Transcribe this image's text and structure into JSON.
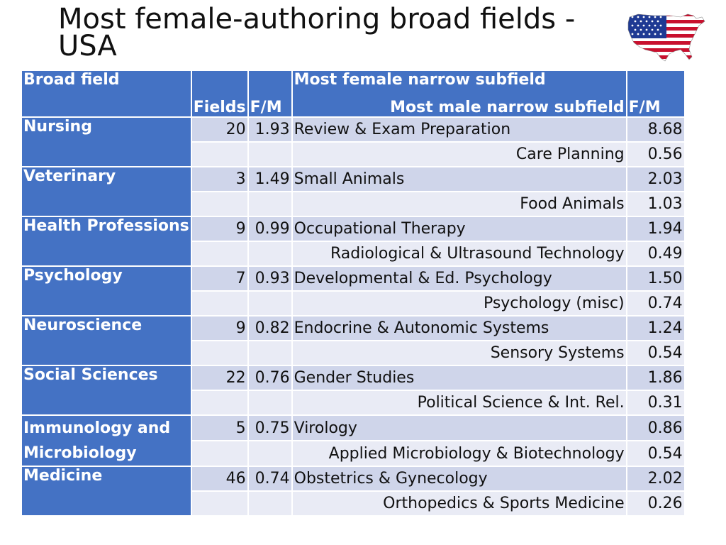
{
  "title": "Most female-authoring broad fields - USA",
  "flag": {
    "icon": "usa-flag-map-icon",
    "colors": {
      "red": "#c8102e",
      "white": "#ffffff",
      "blue": "#1f3a93"
    }
  },
  "table": {
    "headers": {
      "broad_field": "Broad field",
      "fields": "Fields",
      "fm": "F/M",
      "female_sub": "Most female narrow subfield",
      "male_sub": "Most male narrow subfield",
      "fm2": "F/M"
    },
    "rows": [
      {
        "field": "Nursing",
        "fields": "20",
        "fm": "1.93",
        "female_sub": "Review & Exam Preparation",
        "female_fm": "8.68",
        "male_sub": "Care Planning",
        "male_fm": "0.56"
      },
      {
        "field": "Veterinary",
        "fields": "3",
        "fm": "1.49",
        "female_sub": "Small Animals",
        "female_fm": "2.03",
        "male_sub": "Food Animals",
        "male_fm": "1.03"
      },
      {
        "field": "Health Professions",
        "fields": "9",
        "fm": "0.99",
        "female_sub": "Occupational Therapy",
        "female_fm": "1.94",
        "male_sub": "Radiological & Ultrasound Technology",
        "male_fm": "0.49"
      },
      {
        "field": "Psychology",
        "fields": "7",
        "fm": "0.93",
        "female_sub": "Developmental & Ed. Psychology",
        "female_fm": "1.50",
        "male_sub": "Psychology (misc)",
        "male_fm": "0.74"
      },
      {
        "field": "Neuroscience",
        "fields": "9",
        "fm": "0.82",
        "female_sub": "Endocrine & Autonomic Systems",
        "female_fm": "1.24",
        "male_sub": "Sensory Systems",
        "male_fm": "0.54"
      },
      {
        "field": "Social Sciences",
        "fields": "22",
        "fm": "0.76",
        "female_sub": "Gender Studies",
        "female_fm": "1.86",
        "male_sub": "Political Science & Int. Rel.",
        "male_fm": "0.31"
      },
      {
        "field": "Immunology and Microbiology",
        "fields": "5",
        "fm": "0.75",
        "female_sub": "Virology",
        "female_fm": "0.86",
        "male_sub": "Applied Microbiology & Biotechnology",
        "male_fm": "0.54"
      },
      {
        "field": "Medicine",
        "fields": "46",
        "fm": "0.74",
        "female_sub": "Obstetrics & Gynecology",
        "female_fm": "2.02",
        "male_sub": "Orthopedics & Sports Medicine",
        "male_fm": "0.26"
      }
    ]
  }
}
